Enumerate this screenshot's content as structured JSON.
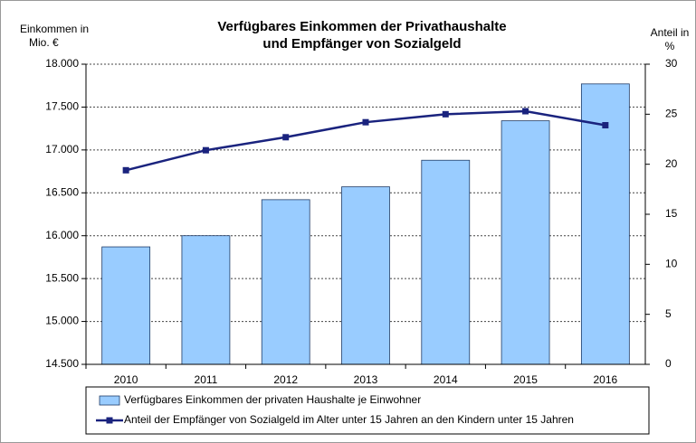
{
  "chart_data": {
    "type": "bar_line",
    "title": [
      "Verfügbares Einkommen der Privathaushalte",
      "und Empfänger von Sozialgeld"
    ],
    "y_label": [
      "Einkommen in",
      "Mio. €"
    ],
    "y2_label": [
      "Anteil in",
      "%"
    ],
    "categories": [
      "2010",
      "2011",
      "2012",
      "2013",
      "2014",
      "2015",
      "2016"
    ],
    "series": [
      {
        "name": "Verfügbares Einkommen der privaten Haushalte je Einwohner",
        "type": "bar",
        "color": "#99ccff",
        "values": [
          15870,
          16000,
          16420,
          16570,
          16880,
          17340,
          17770
        ]
      },
      {
        "name": "Anteil der Empfänger von Sozialgeld im Alter unter 15 Jahren an den Kindern unter 15 Jahren",
        "type": "line",
        "axis": "y2",
        "color": "#1a237e",
        "values": [
          19.4,
          21.4,
          22.7,
          24.2,
          25.0,
          25.3,
          23.9
        ]
      }
    ],
    "ylim": [
      14500,
      18000
    ],
    "yticks": [
      {
        "value": 14500,
        "label": "14.500"
      },
      {
        "value": 15000,
        "label": "15.000"
      },
      {
        "value": 15500,
        "label": "15.500"
      },
      {
        "value": 16000,
        "label": "16.000"
      },
      {
        "value": 16500,
        "label": "16.500"
      },
      {
        "value": 17000,
        "label": "17.000"
      },
      {
        "value": 17500,
        "label": "17.500"
      },
      {
        "value": 18000,
        "label": "18.000"
      }
    ],
    "y2lim": [
      0,
      30
    ],
    "y2ticks": [
      0,
      5,
      10,
      15,
      20,
      25,
      30
    ],
    "grid": true
  }
}
